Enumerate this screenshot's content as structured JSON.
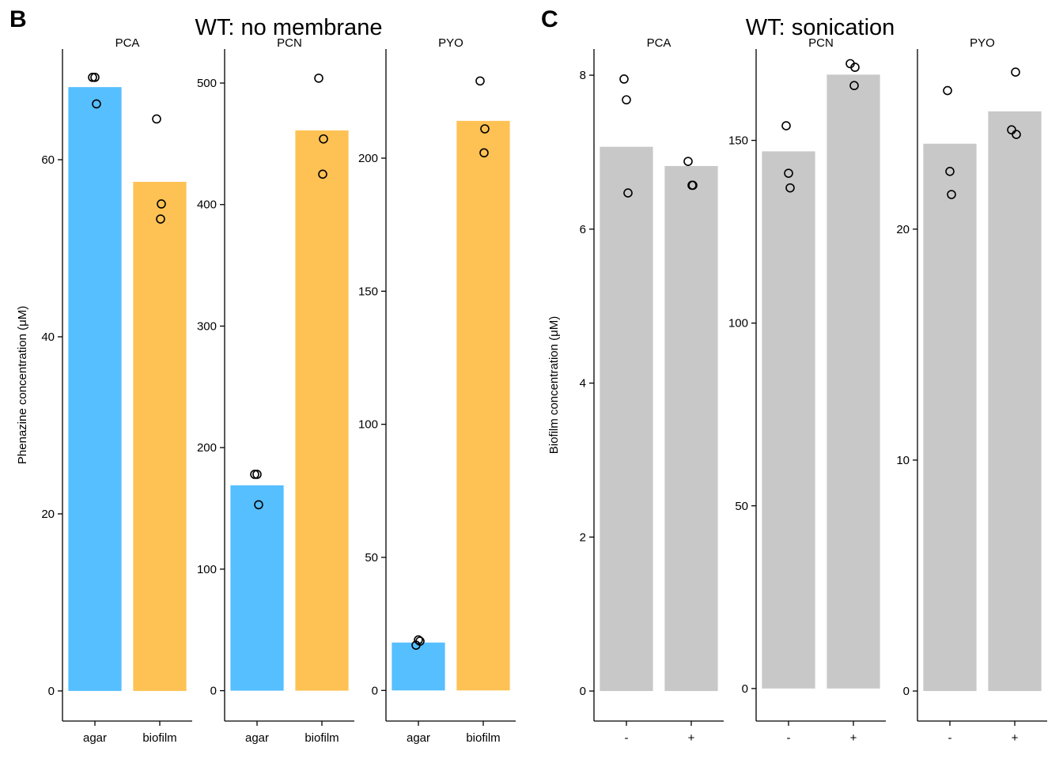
{
  "chart_data": [
    {
      "type": "bar",
      "panel_label": "B",
      "title": "WT: no membrane",
      "ylabel": "Phenazine concentration (μM)",
      "facets": [
        {
          "name": "PCA",
          "categories": [
            "agar",
            "biofilm"
          ],
          "values": [
            68.2,
            57.5
          ],
          "colors": [
            "#56BFFF",
            "#FDC253"
          ],
          "points": [
            [
              69.3,
              69.3,
              66.3
            ],
            [
              64.6,
              55.0,
              53.3
            ]
          ],
          "ylim": [
            -3.4,
            72.5
          ],
          "yticks": [
            0,
            20,
            40,
            60
          ]
        },
        {
          "name": "PCN",
          "categories": [
            "agar",
            "biofilm"
          ],
          "values": [
            169,
            461
          ],
          "colors": [
            "#56BFFF",
            "#FDC253"
          ],
          "points": [
            [
              178,
              178,
              153
            ],
            [
              504,
              454,
              425
            ]
          ],
          "ylim": [
            -25,
            528
          ],
          "yticks": [
            0,
            100,
            200,
            300,
            400,
            500
          ]
        },
        {
          "name": "PYO",
          "categories": [
            "agar",
            "biofilm"
          ],
          "values": [
            18,
            214
          ],
          "colors": [
            "#56BFFF",
            "#FDC253"
          ],
          "points": [
            [
              17,
              19,
              18.5
            ],
            [
              229,
              211,
              202
            ]
          ],
          "ylim": [
            -11.5,
            241
          ],
          "yticks": [
            0,
            50,
            100,
            150,
            200
          ]
        }
      ]
    },
    {
      "type": "bar",
      "panel_label": "C",
      "title": "WT: sonication",
      "ylabel": "Biofilm concentration (μM)",
      "facets": [
        {
          "name": "PCA",
          "categories": [
            "-",
            "+"
          ],
          "values": [
            7.07,
            6.82
          ],
          "colors": [
            "#C8C8C8",
            "#C8C8C8"
          ],
          "points": [
            [
              7.95,
              7.68,
              6.47
            ],
            [
              6.88,
              6.57,
              6.57
            ]
          ],
          "ylim": [
            -0.39,
            8.34
          ],
          "yticks": [
            0,
            2,
            4,
            6,
            8
          ]
        },
        {
          "name": "PCN",
          "categories": [
            "-",
            "+"
          ],
          "values": [
            147,
            168
          ],
          "colors": [
            "#C8C8C8",
            "#C8C8C8"
          ],
          "points": [
            [
              154,
              141,
              137
            ],
            [
              171,
              170,
              165
            ]
          ],
          "ylim": [
            -8.9,
            175
          ],
          "yticks": [
            0,
            50,
            100,
            150
          ]
        },
        {
          "name": "PYO",
          "categories": [
            "-",
            "+"
          ],
          "values": [
            23.7,
            25.1
          ],
          "colors": [
            "#C8C8C8",
            "#C8C8C8"
          ],
          "points": [
            [
              26,
              22.5,
              21.5
            ],
            [
              24.3,
              24.1,
              26.8
            ]
          ],
          "ylim": [
            -1.3,
            27.8
          ],
          "yticks": [
            0,
            10,
            20
          ]
        }
      ]
    }
  ]
}
